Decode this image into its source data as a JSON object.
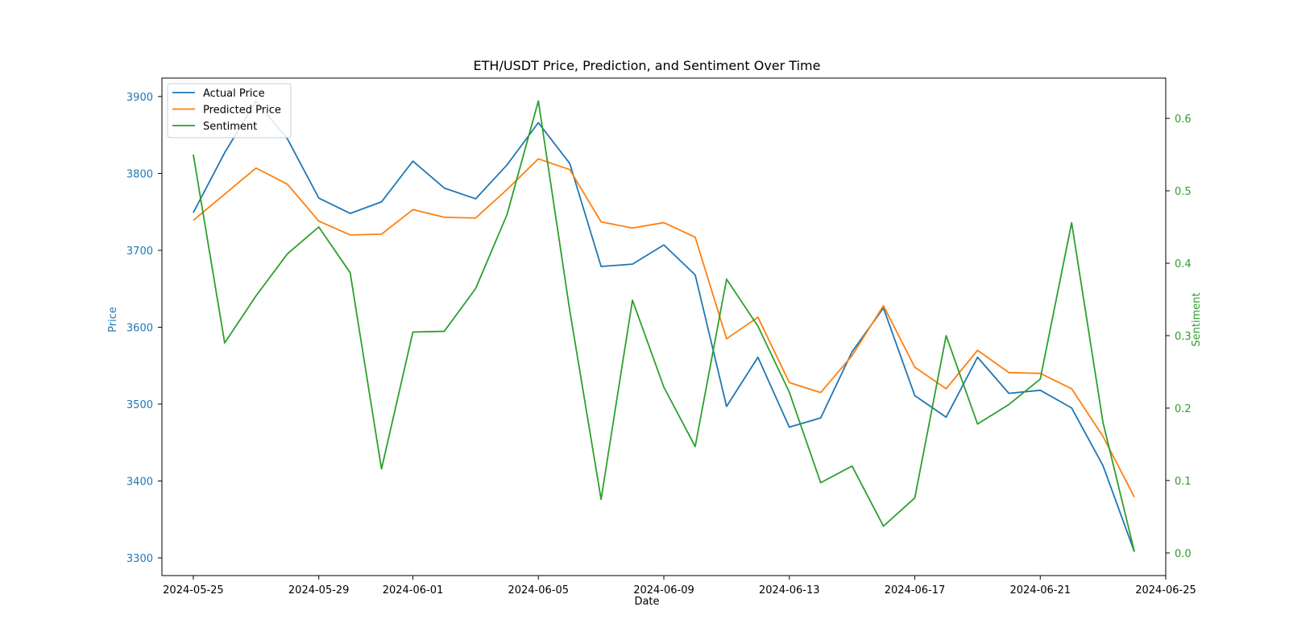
{
  "chart_data": {
    "type": "line",
    "title": "ETH/USDT Price, Prediction, and Sentiment Over Time",
    "xlabel": "Date",
    "ylabel": "Price",
    "y2label": "Sentiment",
    "x": [
      "2024-05-25",
      "2024-05-26",
      "2024-05-27",
      "2024-05-28",
      "2024-05-29",
      "2024-05-30",
      "2024-05-31",
      "2024-06-01",
      "2024-06-02",
      "2024-06-03",
      "2024-06-04",
      "2024-06-05",
      "2024-06-06",
      "2024-06-07",
      "2024-06-08",
      "2024-06-09",
      "2024-06-10",
      "2024-06-11",
      "2024-06-12",
      "2024-06-13",
      "2024-06-14",
      "2024-06-15",
      "2024-06-16",
      "2024-06-17",
      "2024-06-18",
      "2024-06-19",
      "2024-06-20",
      "2024-06-21",
      "2024-06-22",
      "2024-06-23",
      "2024-06-24"
    ],
    "xticks": [
      "2024-05-25",
      "2024-05-29",
      "2024-06-01",
      "2024-06-05",
      "2024-06-09",
      "2024-06-13",
      "2024-06-17",
      "2024-06-21",
      "2024-06-25"
    ],
    "xlim": [
      "2024-05-24",
      "2024-06-25"
    ],
    "ylim": [
      3277,
      3924
    ],
    "yticks": [
      3300,
      3400,
      3500,
      3600,
      3700,
      3800,
      3900
    ],
    "y2lim": [
      -0.0312,
      0.6556
    ],
    "y2ticks": [
      0.0,
      0.1,
      0.2,
      0.3,
      0.4,
      0.5,
      0.6
    ],
    "grid": false,
    "legend_position": "top-left",
    "series": [
      {
        "name": "Actual Price",
        "axis": "left",
        "color": "#1f77b4",
        "values": [
          3749,
          3827,
          3894,
          3845,
          3768,
          3748,
          3763,
          3816,
          3781,
          3767,
          3811,
          3866,
          3813,
          3679,
          3682,
          3707,
          3668,
          3497,
          3561,
          3470,
          3482,
          3568,
          3625,
          3511,
          3483,
          3561,
          3514,
          3518,
          3495,
          3420,
          3308
        ]
      },
      {
        "name": "Predicted Price",
        "axis": "left",
        "color": "#ff7f0e",
        "values": [
          3739,
          3773,
          3807,
          3786,
          3738,
          3720,
          3721,
          3753,
          3743,
          3742,
          3779,
          3819,
          3805,
          3737,
          3729,
          3736,
          3717,
          3585,
          3613,
          3528,
          3515,
          3563,
          3628,
          3548,
          3520,
          3570,
          3541,
          3540,
          3520,
          3458,
          3379
        ]
      },
      {
        "name": "Sentiment",
        "axis": "right",
        "color": "#2ca02c",
        "values": [
          0.55,
          0.29,
          0.355,
          0.413,
          0.45,
          0.387,
          0.116,
          0.305,
          0.306,
          0.365,
          0.467,
          0.624,
          0.335,
          0.074,
          0.349,
          0.229,
          0.147,
          0.378,
          0.313,
          0.222,
          0.097,
          0.12,
          0.037,
          0.076,
          0.3,
          0.178,
          0.205,
          0.24,
          0.456,
          0.18,
          0.002
        ]
      }
    ]
  },
  "colors": {
    "left_axis": "#1f77b4",
    "right_axis": "#2ca02c",
    "frame": "#000000"
  }
}
